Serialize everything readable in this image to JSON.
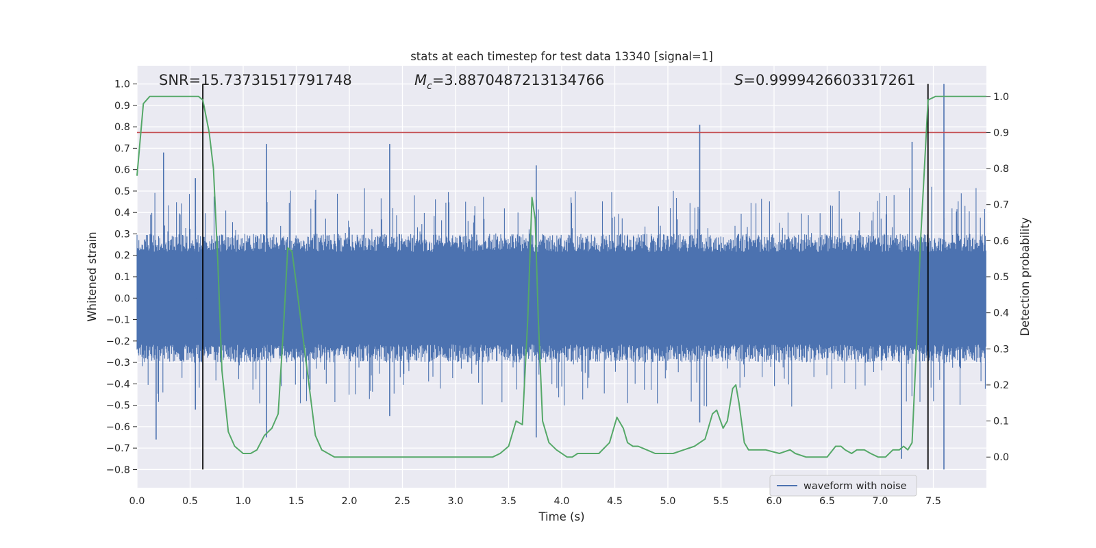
{
  "chart_data": {
    "type": "line",
    "title": "stats at each timestep for test data 13340 [signal=1]",
    "xlabel": "Time (s)",
    "ylabel": "Whitened strain",
    "ylabel_right": "Detection probability",
    "xlim": [
      0.0,
      8.0
    ],
    "ylim": [
      -0.885,
      1.085
    ],
    "ylim_right": [
      -0.085,
      1.085
    ],
    "x_ticks": [
      "0.0",
      "0.5",
      "1.0",
      "1.5",
      "2.0",
      "2.5",
      "3.0",
      "3.5",
      "4.0",
      "4.5",
      "5.0",
      "5.5",
      "6.0",
      "6.5",
      "7.0",
      "7.5"
    ],
    "y_ticks": [
      "1.0",
      "0.9",
      "0.8",
      "0.7",
      "0.6",
      "0.5",
      "0.4",
      "0.3",
      "0.2",
      "0.1",
      "0.0",
      "−0.1",
      "−0.2",
      "−0.3",
      "−0.4",
      "−0.5",
      "−0.6",
      "−0.7",
      "−0.8"
    ],
    "y_ticks_right": [
      "1.0",
      "0.9",
      "0.8",
      "0.7",
      "0.6",
      "0.5",
      "0.4",
      "0.3",
      "0.2",
      "0.1",
      "0.0"
    ],
    "annotations": {
      "snr": "SNR=15.73731517791748",
      "mc_symbol": "M",
      "mc_sub": "c",
      "mc_value": "=3.8870487213134766",
      "s_symbol": "S",
      "s_value": "=0.9999426603317261"
    },
    "legend": {
      "location": "lower right",
      "entries": [
        "waveform with noise"
      ]
    },
    "grid": true,
    "threshold_probability": 0.9,
    "vertical_markers_time": [
      0.62,
      7.45
    ],
    "series": [
      {
        "name": "waveform with noise",
        "axis": "left",
        "color": "#4c72b0",
        "style": "noise",
        "noise_envelope": [
          -0.3,
          0.3
        ],
        "peaks": [
          [
            0.18,
            -0.66
          ],
          [
            0.25,
            0.68
          ],
          [
            0.55,
            0.56
          ],
          [
            0.55,
            -0.52
          ],
          [
            1.22,
            0.72
          ],
          [
            1.22,
            -0.65
          ],
          [
            2.38,
            0.72
          ],
          [
            2.38,
            -0.55
          ],
          [
            3.76,
            0.62
          ],
          [
            3.76,
            -0.65
          ],
          [
            5.3,
            0.81
          ],
          [
            5.3,
            -0.58
          ],
          [
            7.2,
            -0.75
          ],
          [
            7.3,
            0.73
          ],
          [
            7.6,
            1.0
          ],
          [
            7.6,
            -0.8
          ]
        ]
      },
      {
        "name": "",
        "axis": "right",
        "color": "#55a868",
        "x": [
          0.0,
          0.06,
          0.12,
          0.2,
          0.3,
          0.4,
          0.5,
          0.58,
          0.62,
          0.68,
          0.72,
          0.76,
          0.8,
          0.86,
          0.92,
          1.0,
          1.07,
          1.13,
          1.2,
          1.27,
          1.33,
          1.38,
          1.42,
          1.46,
          1.5,
          1.56,
          1.62,
          1.68,
          1.74,
          1.8,
          1.86,
          2.0,
          2.2,
          2.5,
          2.8,
          3.0,
          3.2,
          3.35,
          3.42,
          3.5,
          3.57,
          3.63,
          3.68,
          3.72,
          3.75,
          3.78,
          3.82,
          3.88,
          3.95,
          4.05,
          4.1,
          4.15,
          4.25,
          4.35,
          4.45,
          4.52,
          4.58,
          4.62,
          4.67,
          4.72,
          4.8,
          4.88,
          4.95,
          5.05,
          5.15,
          5.25,
          5.35,
          5.42,
          5.46,
          5.52,
          5.56,
          5.61,
          5.64,
          5.67,
          5.72,
          5.76,
          5.84,
          5.92,
          6.05,
          6.15,
          6.2,
          6.3,
          6.4,
          6.5,
          6.58,
          6.63,
          6.67,
          6.73,
          6.78,
          6.85,
          6.91,
          6.98,
          7.05,
          7.12,
          7.18,
          7.22,
          7.26,
          7.3,
          7.34,
          7.38,
          7.45,
          7.52,
          7.58,
          7.62,
          7.67,
          7.9,
          8.0
        ],
        "values": [
          0.78,
          0.98,
          1.0,
          1.0,
          1.0,
          1.0,
          1.0,
          1.0,
          0.99,
          0.9,
          0.8,
          0.55,
          0.24,
          0.07,
          0.03,
          0.01,
          0.01,
          0.02,
          0.06,
          0.08,
          0.12,
          0.36,
          0.58,
          0.57,
          0.48,
          0.34,
          0.2,
          0.06,
          0.02,
          0.01,
          0.0,
          0.0,
          0.0,
          0.0,
          0.0,
          0.0,
          0.0,
          0.0,
          0.01,
          0.03,
          0.1,
          0.09,
          0.38,
          0.72,
          0.66,
          0.38,
          0.1,
          0.04,
          0.02,
          0.0,
          0.0,
          0.01,
          0.01,
          0.01,
          0.04,
          0.11,
          0.08,
          0.04,
          0.03,
          0.03,
          0.02,
          0.01,
          0.01,
          0.01,
          0.02,
          0.03,
          0.05,
          0.12,
          0.13,
          0.08,
          0.1,
          0.19,
          0.2,
          0.15,
          0.04,
          0.02,
          0.02,
          0.02,
          0.01,
          0.02,
          0.01,
          0.0,
          0.0,
          0.0,
          0.03,
          0.03,
          0.02,
          0.01,
          0.02,
          0.02,
          0.01,
          0.0,
          0.0,
          0.02,
          0.02,
          0.03,
          0.02,
          0.04,
          0.3,
          0.6,
          0.99,
          1.0,
          1.0,
          1.0,
          1.0,
          1.0,
          1.0
        ]
      }
    ]
  }
}
